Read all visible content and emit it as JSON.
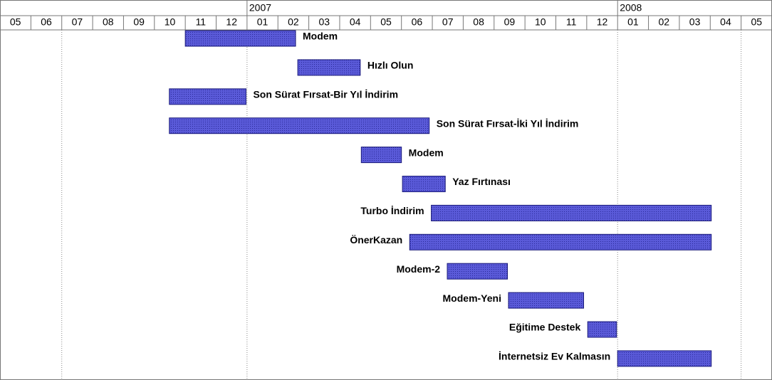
{
  "chart_data": {
    "type": "gantt",
    "color": "#4b4bc8",
    "xlim": [
      "2006-05-01",
      "2008-06-01"
    ],
    "months": [
      {
        "value": "2006-05-01",
        "label": "05"
      },
      {
        "value": "2006-06-01",
        "label": "06"
      },
      {
        "value": "2006-07-01",
        "label": "07"
      },
      {
        "value": "2006-08-01",
        "label": "08"
      },
      {
        "value": "2006-09-01",
        "label": "09"
      },
      {
        "value": "2006-10-01",
        "label": "10"
      },
      {
        "value": "2006-11-01",
        "label": "11"
      },
      {
        "value": "2006-12-01",
        "label": "12"
      },
      {
        "value": "2007-01-01",
        "label": "01"
      },
      {
        "value": "2007-02-01",
        "label": "02"
      },
      {
        "value": "2007-03-01",
        "label": "03"
      },
      {
        "value": "2007-04-01",
        "label": "04"
      },
      {
        "value": "2007-05-01",
        "label": "05"
      },
      {
        "value": "2007-06-01",
        "label": "06"
      },
      {
        "value": "2007-07-01",
        "label": "07"
      },
      {
        "value": "2007-08-01",
        "label": "08"
      },
      {
        "value": "2007-09-01",
        "label": "09"
      },
      {
        "value": "2007-10-01",
        "label": "10"
      },
      {
        "value": "2007-11-01",
        "label": "11"
      },
      {
        "value": "2007-12-01",
        "label": "12"
      },
      {
        "value": "2008-01-01",
        "label": "01"
      },
      {
        "value": "2008-02-01",
        "label": "02"
      },
      {
        "value": "2008-03-01",
        "label": "03"
      },
      {
        "value": "2008-04-01",
        "label": "04"
      },
      {
        "value": "2008-05-01",
        "label": "05"
      }
    ],
    "years": [
      {
        "value": "2007-01-01",
        "label": "2007"
      },
      {
        "value": "2008-01-01",
        "label": "2008"
      }
    ],
    "gridlines": [
      "2006-07-01",
      "2007-01-01",
      "2008-01-01",
      "2008-05-01"
    ],
    "tasks": [
      {
        "name": "Modem",
        "start": "2006-11-01",
        "end": "2007-02-17",
        "label_side": "right"
      },
      {
        "name": "Hızlı Olun",
        "start": "2007-02-19",
        "end": "2007-04-21",
        "label_side": "right"
      },
      {
        "name": "Son Sürat Fırsat-Bir Yıl İndirim",
        "start": "2006-10-16",
        "end": "2006-12-31",
        "label_side": "right"
      },
      {
        "name": "Son Sürat Fırsat-İki Yıl İndirim",
        "start": "2006-10-16",
        "end": "2007-06-28",
        "label_side": "right"
      },
      {
        "name": "Modem",
        "start": "2007-04-22",
        "end": "2007-06-01",
        "label_side": "right"
      },
      {
        "name": "Yaz Fırtınası",
        "start": "2007-06-02",
        "end": "2007-07-14",
        "label_side": "right"
      },
      {
        "name": "Turbo İndirim",
        "start": "2007-06-30",
        "end": "2008-04-02",
        "label_side": "left"
      },
      {
        "name": "ÖnerKazan",
        "start": "2007-06-09",
        "end": "2008-04-02",
        "label_side": "left"
      },
      {
        "name": "Modem-2",
        "start": "2007-07-16",
        "end": "2007-09-14",
        "label_side": "left"
      },
      {
        "name": "Modem-Yeni",
        "start": "2007-09-15",
        "end": "2007-11-28",
        "label_side": "left"
      },
      {
        "name": "Eğitime Destek",
        "start": "2007-12-02",
        "end": "2007-12-31",
        "label_side": "left"
      },
      {
        "name": "İnternetsiz Ev Kalmasın",
        "start": "2008-01-01",
        "end": "2008-04-02",
        "label_side": "left"
      }
    ]
  }
}
